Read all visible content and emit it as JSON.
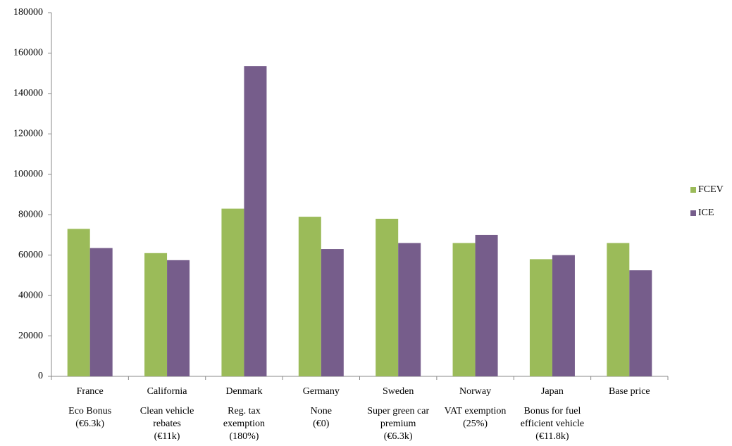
{
  "chart_data": {
    "type": "bar",
    "categories": [
      "France",
      "California",
      "Denmark",
      "Germany",
      "Sweden",
      "Norway",
      "Japan",
      "Base price"
    ],
    "subcategories": [
      [
        "Eco Bonus",
        "(€6.3k)"
      ],
      [
        "Clean vehicle",
        "rebates",
        "(€11k)"
      ],
      [
        "Reg. tax",
        "exemption",
        "(180%)"
      ],
      [
        "None",
        "(€0)"
      ],
      [
        "Super green car",
        "premium",
        "(€6.3k)"
      ],
      [
        "VAT exemption",
        "(25%)"
      ],
      [
        "Bonus for fuel",
        "efficient vehicle",
        "(€11.8k)"
      ],
      null
    ],
    "series": [
      {
        "name": "FCEV",
        "color": "#9bbb59",
        "values": [
          73000,
          61000,
          83000,
          79000,
          78000,
          66000,
          58000,
          66000
        ]
      },
      {
        "name": "ICE",
        "color": "#765d8b",
        "values": [
          63500,
          57500,
          153500,
          63000,
          66000,
          70000,
          60000,
          52500
        ]
      }
    ],
    "ylim": [
      0,
      180000
    ],
    "yticks": [
      0,
      20000,
      40000,
      60000,
      80000,
      100000,
      120000,
      140000,
      160000,
      180000
    ],
    "legend": "right"
  }
}
